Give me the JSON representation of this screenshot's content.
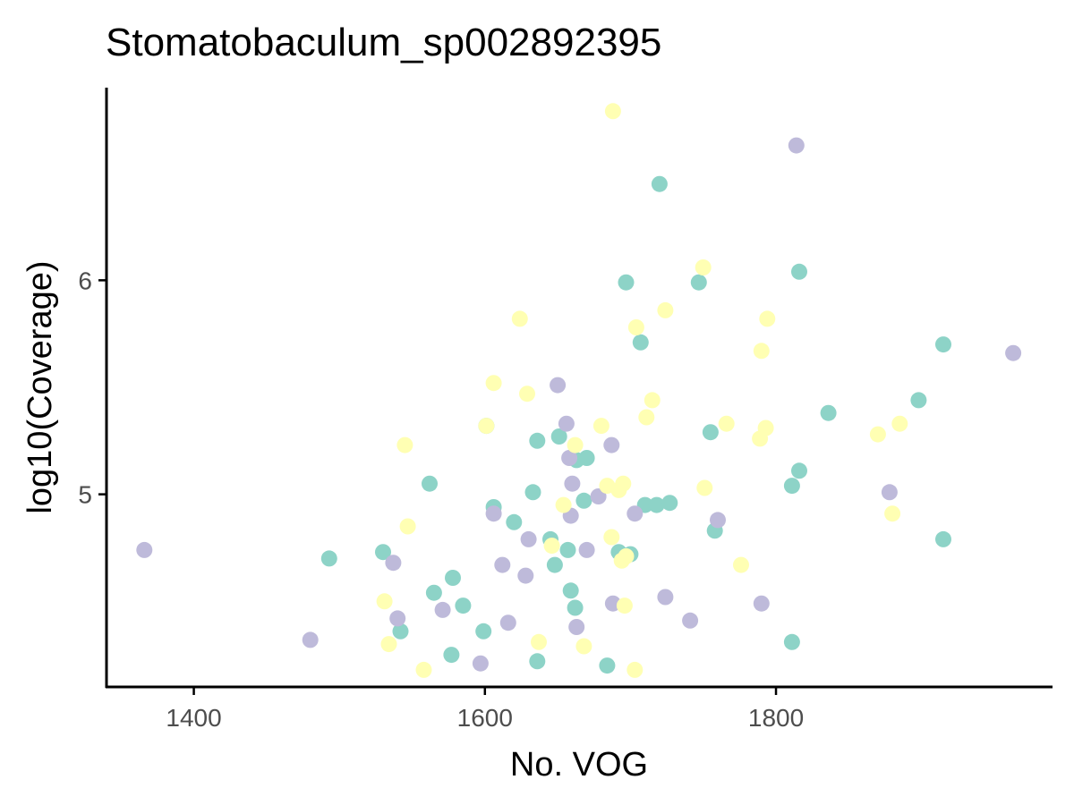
{
  "chart_data": {
    "type": "scatter",
    "title": "Stomatobaculum_sp002892395",
    "xlabel": "No. VOG",
    "ylabel": "log10(Coverage)",
    "xlim": [
      1340,
      1990
    ],
    "ylim": [
      4.1,
      6.9
    ],
    "x_ticks": [
      1400,
      1600,
      1800
    ],
    "y_ticks": [
      5,
      6
    ],
    "grid": false,
    "legend": "none",
    "colors": [
      "#8dd3c7",
      "#bebada",
      "#ffffb3"
    ],
    "series": [
      {
        "color": "#8dd3c7",
        "points": [
          [
            1493,
            4.7
          ],
          [
            1530,
            4.73
          ],
          [
            1542,
            4.36
          ],
          [
            1562,
            5.05
          ],
          [
            1565,
            4.54
          ],
          [
            1577,
            4.25
          ],
          [
            1578,
            4.61
          ],
          [
            1585,
            4.48
          ],
          [
            1599,
            4.36
          ],
          [
            1601,
            5.32
          ],
          [
            1606,
            4.94
          ],
          [
            1620,
            4.87
          ],
          [
            1633,
            5.01
          ],
          [
            1636,
            5.25
          ],
          [
            1636,
            4.22
          ],
          [
            1645,
            4.79
          ],
          [
            1648,
            4.67
          ],
          [
            1651,
            5.27
          ],
          [
            1657,
            4.74
          ],
          [
            1659,
            4.55
          ],
          [
            1662,
            4.47
          ],
          [
            1663,
            5.16
          ],
          [
            1668,
            4.97
          ],
          [
            1670,
            5.17
          ],
          [
            1684,
            4.2
          ],
          [
            1692,
            4.73
          ],
          [
            1697,
            5.99
          ],
          [
            1700,
            4.72
          ],
          [
            1707,
            5.71
          ],
          [
            1710,
            4.95
          ],
          [
            1718,
            4.95
          ],
          [
            1720,
            6.45
          ],
          [
            1727,
            4.96
          ],
          [
            1747,
            5.99
          ],
          [
            1755,
            5.29
          ],
          [
            1758,
            4.83
          ],
          [
            1811,
            5.04
          ],
          [
            1811,
            4.31
          ],
          [
            1816,
            5.11
          ],
          [
            1816,
            6.04
          ],
          [
            1836,
            5.38
          ],
          [
            1898,
            5.44
          ],
          [
            1915,
            5.7
          ],
          [
            1915,
            4.79
          ]
        ]
      },
      {
        "color": "#bebada",
        "points": [
          [
            1366,
            4.74
          ],
          [
            1480,
            4.32
          ],
          [
            1537,
            4.68
          ],
          [
            1540,
            4.42
          ],
          [
            1571,
            4.46
          ],
          [
            1597,
            4.21
          ],
          [
            1606,
            4.91
          ],
          [
            1612,
            4.67
          ],
          [
            1616,
            4.4
          ],
          [
            1628,
            4.62
          ],
          [
            1630,
            4.79
          ],
          [
            1650,
            5.51
          ],
          [
            1656,
            5.33
          ],
          [
            1658,
            5.17
          ],
          [
            1659,
            4.9
          ],
          [
            1660,
            5.05
          ],
          [
            1663,
            4.38
          ],
          [
            1670,
            4.74
          ],
          [
            1678,
            4.99
          ],
          [
            1687,
            5.23
          ],
          [
            1688,
            4.49
          ],
          [
            1703,
            4.91
          ],
          [
            1724,
            4.52
          ],
          [
            1741,
            4.41
          ],
          [
            1760,
            4.88
          ],
          [
            1790,
            4.49
          ],
          [
            1814,
            6.63
          ],
          [
            1878,
            5.01
          ],
          [
            1963,
            5.66
          ]
        ]
      },
      {
        "color": "#ffffb3",
        "points": [
          [
            1531,
            4.5
          ],
          [
            1534,
            4.3
          ],
          [
            1545,
            5.23
          ],
          [
            1547,
            4.85
          ],
          [
            1558,
            4.18
          ],
          [
            1601,
            5.32
          ],
          [
            1606,
            5.52
          ],
          [
            1624,
            5.82
          ],
          [
            1629,
            5.47
          ],
          [
            1637,
            4.31
          ],
          [
            1646,
            4.76
          ],
          [
            1654,
            4.95
          ],
          [
            1662,
            5.23
          ],
          [
            1668,
            4.29
          ],
          [
            1680,
            5.32
          ],
          [
            1684,
            5.04
          ],
          [
            1687,
            4.8
          ],
          [
            1688,
            6.79
          ],
          [
            1692,
            5.02
          ],
          [
            1694,
            4.69
          ],
          [
            1695,
            5.05
          ],
          [
            1696,
            4.48
          ],
          [
            1697,
            4.71
          ],
          [
            1703,
            4.18
          ],
          [
            1704,
            5.78
          ],
          [
            1711,
            5.36
          ],
          [
            1715,
            5.44
          ],
          [
            1724,
            5.86
          ],
          [
            1750,
            6.06
          ],
          [
            1751,
            5.03
          ],
          [
            1766,
            5.33
          ],
          [
            1776,
            4.67
          ],
          [
            1789,
            5.26
          ],
          [
            1790,
            5.67
          ],
          [
            1793,
            5.31
          ],
          [
            1794,
            5.82
          ],
          [
            1870,
            5.28
          ],
          [
            1880,
            4.91
          ],
          [
            1885,
            5.33
          ]
        ]
      }
    ]
  }
}
